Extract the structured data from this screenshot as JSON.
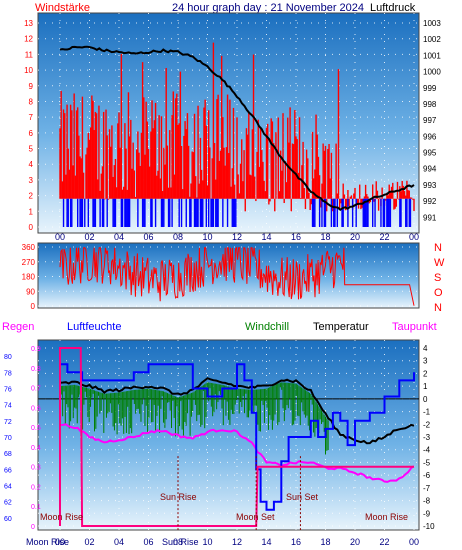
{
  "header": {
    "left_label": "Windstärke",
    "title": "24 hour graph day : 21 November 2024",
    "right_label": "Luftdruck"
  },
  "labels": {
    "regen": "Regen",
    "luftfeuchte": "Luftfeuchte",
    "windchill": "Windchill",
    "temperatur": "Temperatur",
    "taupunkt": "Taupunkt",
    "sun_rise": "Sun Rise",
    "sun_set": "Sun Set",
    "moon_rise": "Moon Rise",
    "moon_set": "Moon Set",
    "bottom_moon_rise": "Moon Rise",
    "bottom_sun_rise": "Sun Rise"
  },
  "colors": {
    "wind": "#ff0000",
    "gust": "#0000ff",
    "pressure": "#000000",
    "humidity": "#0000ff",
    "windchill": "#008000",
    "temperature": "#000000",
    "dewpoint": "#ff00ff",
    "rain": "#ff0080"
  },
  "chart_data": [
    {
      "type": "bar",
      "title": "24 hour graph day : 21 November 2024",
      "x_ticks": [
        "00",
        "02",
        "04",
        "06",
        "08",
        "10",
        "12",
        "14",
        "16",
        "18",
        "20",
        "22",
        "00"
      ],
      "y_left_ticks": [
        "0",
        "1",
        "2",
        "3",
        "4",
        "5",
        "6",
        "7",
        "8",
        "9",
        "10",
        "11",
        "12",
        "13"
      ],
      "y_left_label": "Windstärke",
      "y_right_ticks": [
        "991",
        "992",
        "993",
        "994",
        "995",
        "996",
        "997",
        "998",
        "999",
        "1000",
        "1001",
        "1002",
        "1003"
      ],
      "y_right_label": "Luftdruck",
      "ylim_left": [
        0,
        13
      ],
      "ylim_right": [
        990.4,
        1003
      ],
      "series": [
        {
          "name": "Luftdruck",
          "type": "line",
          "axis": "right",
          "x": [
            0,
            1,
            2,
            3,
            4,
            5,
            6,
            7,
            8,
            9,
            10,
            11,
            12,
            13,
            14,
            15,
            16,
            17,
            18,
            19,
            20,
            21,
            22,
            23,
            24
          ],
          "y": [
            1001.3,
            1001.5,
            1001.5,
            1001.3,
            1001.2,
            1001.1,
            1001.2,
            1001.3,
            1001.2,
            1000.9,
            1000.3,
            999.5,
            998.5,
            997.3,
            996.0,
            994.7,
            993.6,
            992.6,
            991.9,
            991.5,
            991.7,
            992.1,
            992.4,
            992.7,
            993.0
          ]
        }
      ]
    },
    {
      "type": "line",
      "y_ticks": [
        "0",
        "90",
        "180",
        "270",
        "360"
      ],
      "ylim": [
        0,
        360
      ],
      "direction_labels": [
        "N",
        "W",
        "S",
        "O",
        "N"
      ]
    },
    {
      "type": "line",
      "y_left_rain_ticks": [
        "0",
        "0.1",
        "0.2",
        "0.3",
        "0.4",
        "0.5",
        "0.6",
        "0.7",
        "0.8",
        "0.9"
      ],
      "y_left_humidity_ticks": [
        "60",
        "62",
        "64",
        "66",
        "68",
        "70",
        "72",
        "74",
        "76",
        "78",
        "80"
      ],
      "y_right_temp_ticks": [
        "4",
        "3",
        "2",
        "1",
        "0",
        "-1",
        "-2",
        "-3",
        "-4",
        "-5",
        "-6",
        "-7",
        "-8",
        "-9",
        "-10"
      ],
      "ylim_temp": [
        -10,
        4
      ],
      "ylim_humidity": [
        59,
        81
      ],
      "series": [
        {
          "name": "Temperatur",
          "axis": "temp",
          "x": [
            0,
            1,
            2,
            3,
            4,
            5,
            6,
            7,
            8,
            9,
            10,
            11,
            12,
            13,
            14,
            15,
            16,
            17,
            18,
            19,
            20,
            21,
            22,
            23,
            24
          ],
          "y": [
            1.2,
            1.3,
            1.0,
            0.6,
            0.7,
            0.9,
            1.0,
            0.8,
            0.3,
            0.7,
            1.5,
            1.3,
            1.0,
            0.9,
            1.0,
            1.5,
            1.4,
            0.6,
            -1.2,
            -2.8,
            -3.2,
            -3.5,
            -3.0,
            -2.3,
            -2.1
          ]
        },
        {
          "name": "Luftfeuchte",
          "axis": "humidity",
          "x": [
            0,
            0.5,
            1,
            1.5,
            2,
            3,
            4,
            5,
            6,
            7,
            8,
            9,
            10,
            11,
            12,
            12.5,
            13,
            13.3,
            13.6,
            14,
            14.5,
            15,
            15.5,
            16,
            16.5,
            17,
            17.5,
            18,
            18.5,
            19,
            19.5,
            20,
            21,
            22,
            23,
            24
          ],
          "y": [
            79,
            78,
            78,
            77,
            77,
            77,
            77,
            78,
            79,
            79,
            79,
            76,
            75,
            76,
            79,
            77,
            73,
            66,
            62,
            61,
            62,
            67,
            70,
            70,
            70,
            72,
            70,
            71,
            73,
            72,
            69,
            72,
            73,
            75,
            77,
            78
          ]
        },
        {
          "name": "Taupunkt",
          "axis": "temp",
          "x": [
            0,
            1,
            2,
            3,
            4,
            5,
            6,
            7,
            8,
            9,
            10,
            11,
            12,
            13,
            14,
            15,
            16,
            17,
            18,
            19,
            20,
            21,
            22,
            23,
            24
          ],
          "y": [
            -2.0,
            -2.2,
            -3.0,
            -3.4,
            -3.2,
            -3.0,
            -2.6,
            -2.5,
            -2.9,
            -3.1,
            -2.6,
            -2.4,
            -2.6,
            -3.5,
            -5.0,
            -5.2,
            -5.0,
            -5.0,
            -5.4,
            -5.5,
            -5.8,
            -6.2,
            -6.5,
            -6.3,
            -5.3
          ]
        },
        {
          "name": "Windchill",
          "axis": "temp",
          "note": "dense spikes between 00 and 18"
        },
        {
          "name": "Regen",
          "axis": "rain",
          "x": [
            0,
            1.4,
            1.5,
            13.3,
            13.4,
            24
          ],
          "y": [
            0.9,
            0.9,
            0.0,
            0.0,
            0.3,
            0.3
          ]
        }
      ]
    }
  ]
}
